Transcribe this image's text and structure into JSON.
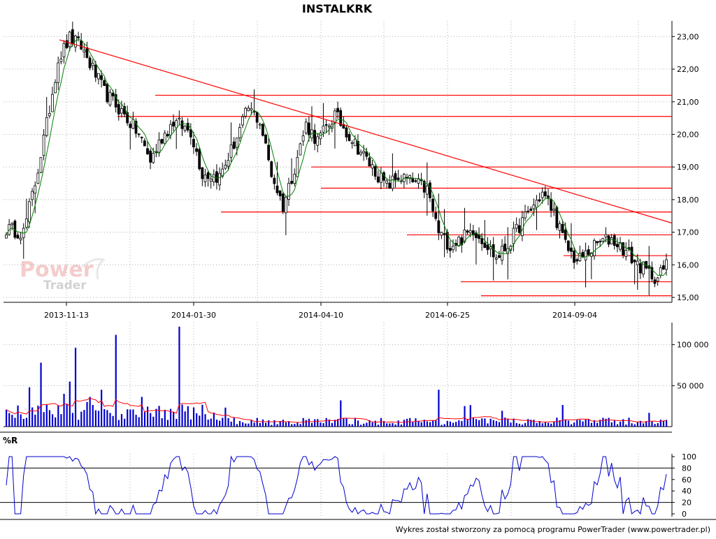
{
  "chart_data": [
    {
      "type": "candlestick",
      "title": "INSTALKRK",
      "y_ticks": [
        "23,00",
        "22,00",
        "21,00",
        "20,00",
        "19,00",
        "18,00",
        "17,00",
        "16,00",
        "15,00"
      ],
      "y_values": [
        23,
        22,
        21,
        20,
        19,
        18,
        17,
        16,
        15
      ],
      "ylim": [
        14.85,
        23.35
      ],
      "x_ticks": [
        "2013-11-13",
        "2014-01-30",
        "2014-04-10",
        "2014-06-25",
        "2014-09-04"
      ],
      "grid": true,
      "series": [
        {
          "name": "",
          "kind": "ohlc",
          "count": 230
        },
        {
          "name": "",
          "kind": "moving-average",
          "color": "#008000"
        }
      ],
      "support_resistance_levels": [
        21.2,
        20.55,
        19.0,
        18.35,
        17.62,
        16.92,
        16.28,
        15.48,
        15.05
      ],
      "trendline": {
        "from": [
          0.0,
          22.9
        ],
        "to": [
          1.0,
          17.28
        ],
        "color": "#ff0000"
      },
      "colors": {
        "up": "#ffffff",
        "down": "#000000",
        "levels": "#ff0000",
        "ma": "#008000"
      }
    },
    {
      "type": "bar",
      "name": "volume",
      "y_ticks": [
        "100 000",
        "50 000"
      ],
      "y_values": [
        100000,
        50000
      ],
      "ylim": [
        0,
        127000
      ],
      "series": [
        {
          "name": "",
          "kind": "bars",
          "color": "#0000cc"
        },
        {
          "name": "",
          "kind": "moving-average",
          "color": "#ff0000"
        }
      ]
    },
    {
      "type": "line",
      "title": "%R",
      "y_ticks": [
        "100",
        "80",
        "60",
        "40",
        "20",
        "0"
      ],
      "y_values": [
        100,
        80,
        60,
        40,
        20,
        0
      ],
      "ylim": [
        0,
        100
      ],
      "reference_lines": [
        80,
        20
      ],
      "series": [
        {
          "name": "",
          "kind": "oscillator",
          "color": "#0000cc"
        }
      ]
    }
  ],
  "watermark": {
    "line1": "Power",
    "line2": "Trader"
  },
  "footer": "Wykres został stworzony za pomocą programu PowerTrader (www.powertrader.pl)"
}
